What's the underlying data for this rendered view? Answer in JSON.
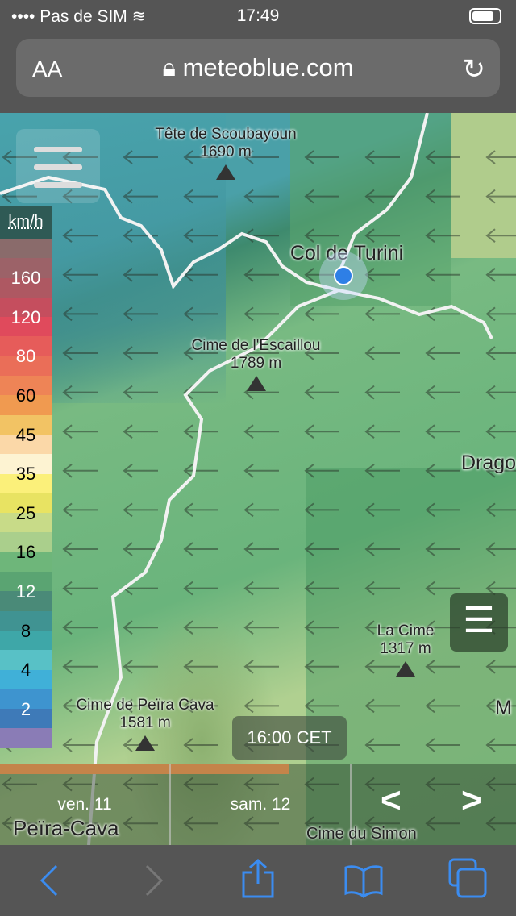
{
  "status": {
    "carrier": "Pas de SIM",
    "time": "17:49"
  },
  "browser": {
    "text_size": "AA",
    "url": "meteoblue.com",
    "reload_icon": "reload-icon"
  },
  "map": {
    "places": [
      {
        "name": "Tête de Scoubayoun",
        "elevation": "1690 m"
      },
      {
        "name": "Cime de l'Escaillou",
        "elevation": "1789 m"
      },
      {
        "name": "La Cime",
        "elevation": "1317 m"
      },
      {
        "name": "Cime de Peïra Cava",
        "elevation": "1581 m"
      }
    ],
    "location": "Col de Turini",
    "labels": {
      "dragon": "Drago",
      "m": "M",
      "peira": "Peïra-Cava",
      "simon": "Cime du Simon"
    }
  },
  "legend": {
    "unit": "km/h",
    "labels": [
      "160",
      "120",
      "80",
      "60",
      "45",
      "35",
      "25",
      "16",
      "12",
      "8",
      "4",
      "2"
    ],
    "colors": [
      "#8a6b6b",
      "#9c6268",
      "#ae5862",
      "#c54e5e",
      "#e04a5c",
      "#e65c5a",
      "#ea6e58",
      "#ee8456",
      "#f09a50",
      "#f2c364",
      "#fbd8a8",
      "#fdf3d2",
      "#fbf07a",
      "#e8e362",
      "#c8db88",
      "#aacf8c",
      "#6eb67a",
      "#5aa472",
      "#4a8a78",
      "#409392",
      "#3ea7a8",
      "#58c1c6",
      "#40b0d8",
      "#3e94cf",
      "#3e7ab8",
      "#556ea6",
      "#8a7cb6"
    ],
    "label_colors": [
      "#fff",
      "#fff",
      "#fff",
      "#000",
      "#000",
      "#000",
      "#000",
      "#000",
      "#fff",
      "#000",
      "#000",
      "#fff"
    ]
  },
  "timeline": {
    "current_time": "16:00 CET",
    "days": [
      "ven. 11",
      "sam. 12"
    ],
    "progress_percent": 56,
    "prev": "<",
    "next": ">"
  },
  "toolbar": {
    "items": [
      "back",
      "forward",
      "share",
      "bookmarks",
      "tabs"
    ]
  }
}
